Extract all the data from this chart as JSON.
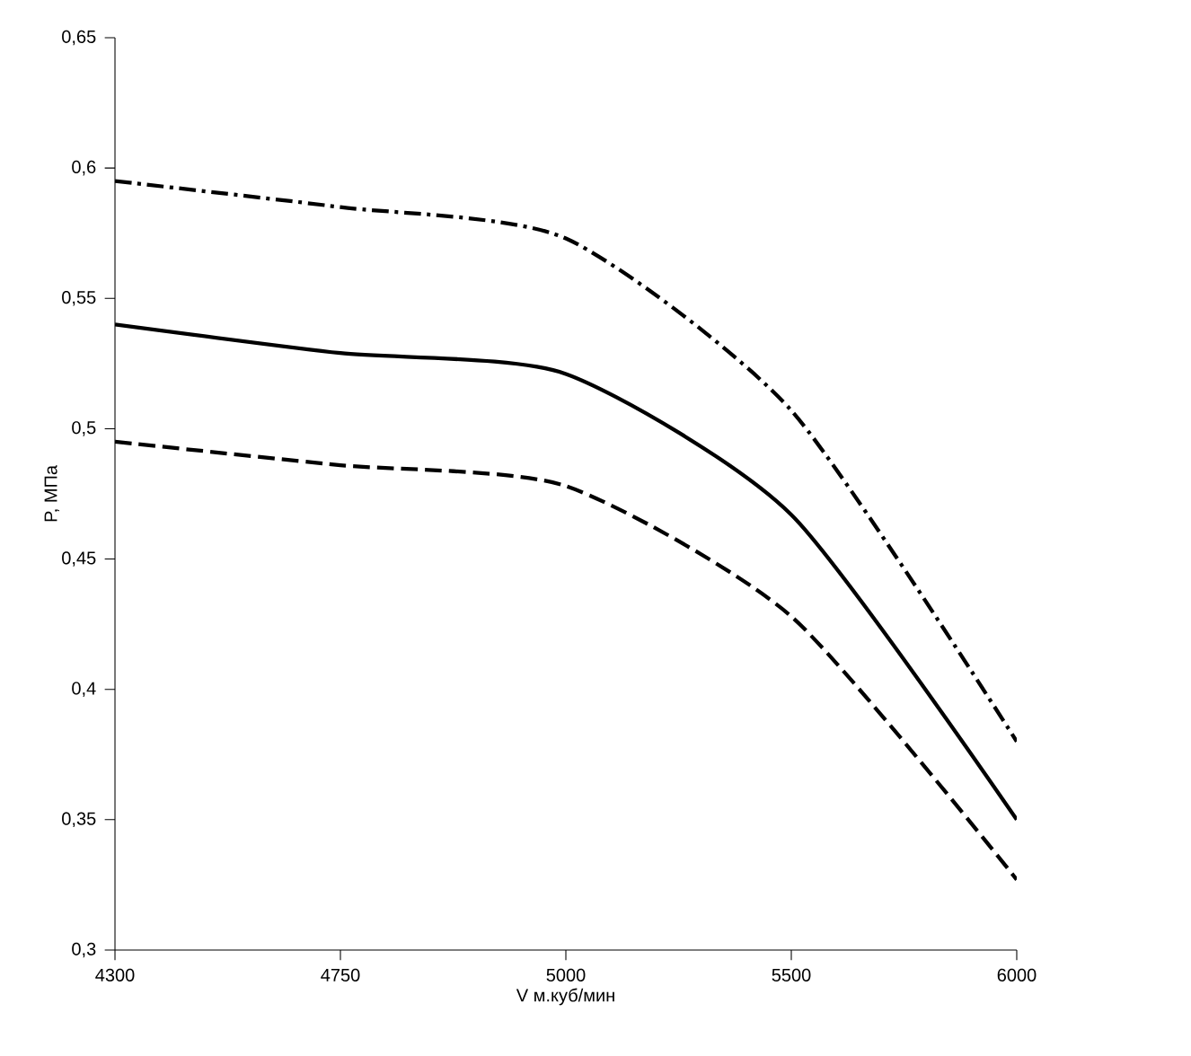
{
  "chart_data": {
    "type": "line",
    "xlabel": "V м.куб/мин",
    "ylabel": "P, МПа",
    "categories": [
      "4300",
      "4750",
      "5000",
      "5500",
      "6000"
    ],
    "series": [
      {
        "color": "#000000",
        "line_style": "dashdot",
        "values": [
          0.595,
          0.585,
          0.573,
          0.507,
          0.38
        ]
      },
      {
        "color": "#000000",
        "line_style": "solid",
        "values": [
          0.54,
          0.529,
          0.521,
          0.467,
          0.35
        ]
      },
      {
        "color": "#000000",
        "line_style": "dashed",
        "values": [
          0.495,
          0.486,
          0.478,
          0.428,
          0.327
        ]
      }
    ],
    "ylim": [
      0.3,
      0.65
    ],
    "yticks": [
      {
        "value": 0.3,
        "label": "0,3"
      },
      {
        "value": 0.35,
        "label": "0,35"
      },
      {
        "value": 0.4,
        "label": "0,4"
      },
      {
        "value": 0.45,
        "label": "0,45"
      },
      {
        "value": 0.5,
        "label": "0,5"
      },
      {
        "value": 0.55,
        "label": "0,55"
      },
      {
        "value": 0.6,
        "label": "0,6"
      },
      {
        "value": 0.65,
        "label": "0,65"
      }
    ],
    "grid": false,
    "marker": "none"
  }
}
